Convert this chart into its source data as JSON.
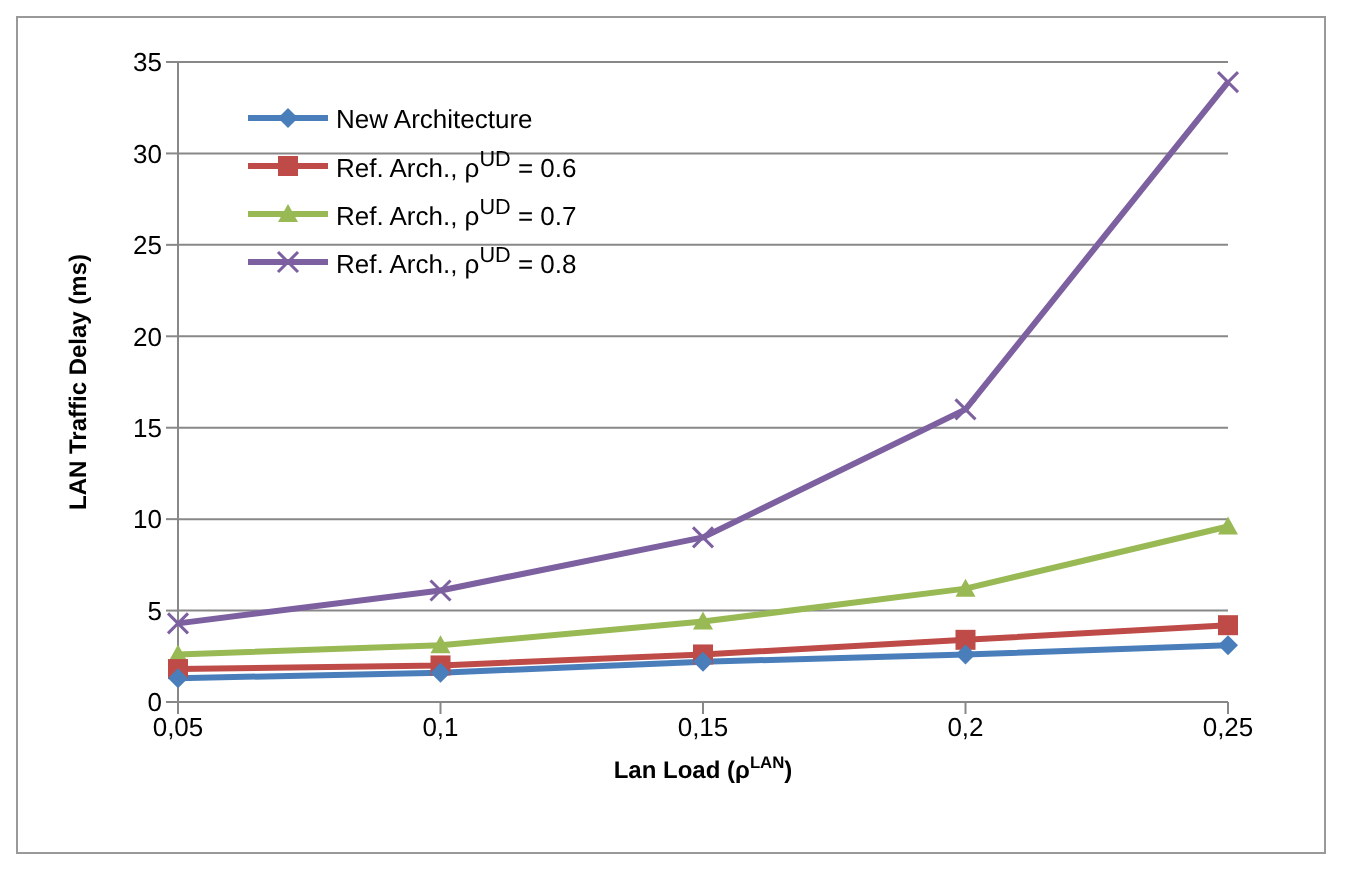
{
  "chart_data": {
    "type": "line",
    "xlabel": "Lan Load (ρ$^{LAN}$)",
    "ylabel": "LAN Traffic Delay (ms)",
    "categories": [
      "0,05",
      "0,1",
      "0,15",
      "0,2",
      "0,25"
    ],
    "ylim": [
      0,
      35
    ],
    "yticks": [
      0,
      5,
      10,
      15,
      20,
      25,
      30,
      35
    ],
    "grid": "y",
    "legend": "top left",
    "series": [
      {
        "name": "New Architecture",
        "color": "#4a7ebb",
        "marker": "diamond",
        "values": [
          1.3,
          1.6,
          2.2,
          2.6,
          3.1
        ]
      },
      {
        "name": "Ref. Arch., ρ$^{UD}$ = 0.6",
        "color": "#be4b48",
        "marker": "square",
        "values": [
          1.8,
          2.0,
          2.6,
          3.4,
          4.2
        ]
      },
      {
        "name": "Ref. Arch., ρ$^{UD}$ = 0.7",
        "color": "#98b954",
        "marker": "triangle",
        "values": [
          2.6,
          3.1,
          4.4,
          6.2,
          9.6
        ]
      },
      {
        "name": "Ref. Arch., ρ$^{UD}$ = 0.8",
        "color": "#7d60a0",
        "marker": "cross",
        "values": [
          4.3,
          6.1,
          9.0,
          16.0,
          33.9
        ]
      }
    ]
  }
}
